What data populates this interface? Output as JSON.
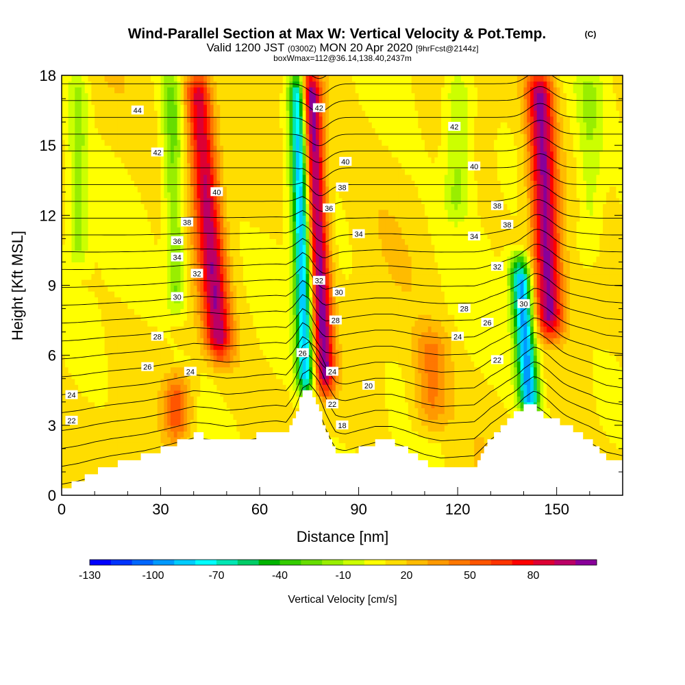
{
  "header": {
    "title": "Wind-Parallel Section at Max W: Vertical Velocity & Pot.Temp.",
    "copyright": "(C)",
    "valid_prefix": "Valid 1200 JST",
    "valid_utc": "(0300Z)",
    "valid_date": "MON 20 Apr 2020",
    "forecast_info": "[9hrFcst@2144z]",
    "box_info": "boxWmax=112@36.14,138.40,2437m"
  },
  "chart_data": {
    "type": "heatmap",
    "title": "Wind-Parallel Section at Max W: Vertical Velocity & Pot.Temp.",
    "xlabel": "Distance [nm]",
    "ylabel": "Height [Kft MSL]",
    "xlim": [
      0,
      170
    ],
    "ylim": [
      0,
      18
    ],
    "x_ticks": [
      0,
      30,
      60,
      90,
      120,
      150
    ],
    "y_ticks": [
      0,
      3,
      6,
      9,
      12,
      15,
      18
    ],
    "grid": false,
    "fill_variable": "Vertical Velocity [cm/s]",
    "colorbar": {
      "label": "Vertical Velocity [cm/s]",
      "placement": "bottom",
      "tick_labels": [
        "-130",
        "-100",
        "-70",
        "-40",
        "-10",
        "20",
        "50",
        "80"
      ],
      "tick_values": [
        -130,
        -100,
        -70,
        -40,
        -10,
        20,
        50,
        80
      ],
      "range": [
        -130,
        110
      ],
      "interval": 10,
      "colors": [
        "#0000ff",
        "#0033ff",
        "#0066ff",
        "#0099ff",
        "#00ccff",
        "#00ffff",
        "#00e6b3",
        "#00cc66",
        "#00b300",
        "#33cc00",
        "#66dd00",
        "#99ee00",
        "#ccff00",
        "#ffff00",
        "#ffdd00",
        "#ffbb00",
        "#ff9900",
        "#ff7700",
        "#ff5500",
        "#ff3300",
        "#ff0000",
        "#dd0033",
        "#bb0066",
        "#880099"
      ]
    },
    "terrain": [
      [
        0,
        0.3
      ],
      [
        5,
        0.6
      ],
      [
        10,
        1.0
      ],
      [
        15,
        1.3
      ],
      [
        20,
        1.5
      ],
      [
        25,
        1.7
      ],
      [
        30,
        2.0
      ],
      [
        35,
        2.3
      ],
      [
        40,
        2.6
      ],
      [
        45,
        2.5
      ],
      [
        50,
        2.3
      ],
      [
        55,
        2.4
      ],
      [
        60,
        2.6
      ],
      [
        65,
        2.7
      ],
      [
        68,
        2.6
      ],
      [
        70,
        3.2
      ],
      [
        73,
        4.5
      ],
      [
        75,
        4.5
      ],
      [
        78,
        3.5
      ],
      [
        80,
        2.6
      ],
      [
        83,
        1.7
      ],
      [
        86,
        1.7
      ],
      [
        90,
        2.0
      ],
      [
        95,
        2.3
      ],
      [
        100,
        2.3
      ],
      [
        104,
        2.0
      ],
      [
        110,
        1.4
      ],
      [
        115,
        1.1
      ],
      [
        120,
        1.2
      ],
      [
        125,
        1.3
      ],
      [
        130,
        2.5
      ],
      [
        135,
        3.3
      ],
      [
        140,
        3.8
      ],
      [
        143,
        3.8
      ],
      [
        146,
        3.4
      ],
      [
        150,
        3.2
      ],
      [
        155,
        2.8
      ],
      [
        160,
        2.3
      ],
      [
        165,
        1.6
      ],
      [
        170,
        1.3
      ]
    ],
    "updrafts": [
      {
        "x": 48,
        "y0": 6,
        "y1": 18,
        "tilt": -0.6,
        "width": 4,
        "w": 80
      },
      {
        "x": 80,
        "y0": 4.5,
        "y1": 18,
        "tilt": -0.35,
        "width": 3,
        "w": 95
      },
      {
        "x": 148,
        "y0": 7,
        "y1": 18,
        "tilt": -0.3,
        "width": 4,
        "w": 90
      },
      {
        "x": 35,
        "y0": 2.5,
        "y1": 5,
        "tilt": 0,
        "width": 4,
        "w": 45
      },
      {
        "x": 112,
        "y0": 3,
        "y1": 7,
        "tilt": 0,
        "width": 5,
        "w": 30
      }
    ],
    "downdrafts": [
      {
        "x": 74,
        "y0": 4.5,
        "y1": 18,
        "tilt": -0.2,
        "width": 2.5,
        "w": -100
      },
      {
        "x": 142,
        "y0": 3.5,
        "y1": 10,
        "tilt": -0.5,
        "width": 3,
        "w": -110
      },
      {
        "x": 35,
        "y0": 8,
        "y1": 18,
        "tilt": -0.2,
        "width": 3,
        "w": -35
      },
      {
        "x": 5,
        "y0": 10,
        "y1": 18,
        "tilt": 0,
        "width": 3,
        "w": -25
      },
      {
        "x": 160,
        "y0": 10,
        "y1": 18,
        "tilt": 0,
        "width": 4,
        "w": -20
      },
      {
        "x": 120,
        "y0": 12,
        "y1": 18,
        "tilt": 0,
        "width": 4,
        "w": -25
      }
    ],
    "theta_contours": {
      "variable": "Potential Temperature",
      "min": 18,
      "max": 44,
      "interval": 1,
      "label_interval": 2
    },
    "contour_labels": [
      {
        "text": "44",
        "x": 23,
        "y": 16.5
      },
      {
        "text": "42",
        "x": 29,
        "y": 14.7
      },
      {
        "text": "40",
        "x": 47,
        "y": 13.0
      },
      {
        "text": "38",
        "x": 38,
        "y": 11.7
      },
      {
        "text": "36",
        "x": 35,
        "y": 10.9
      },
      {
        "text": "34",
        "x": 35,
        "y": 10.2
      },
      {
        "text": "32",
        "x": 41,
        "y": 9.5
      },
      {
        "text": "30",
        "x": 35,
        "y": 8.5
      },
      {
        "text": "28",
        "x": 29,
        "y": 6.8
      },
      {
        "text": "26",
        "x": 26,
        "y": 5.5
      },
      {
        "text": "24",
        "x": 39,
        "y": 5.3
      },
      {
        "text": "24",
        "x": 3,
        "y": 4.3
      },
      {
        "text": "22",
        "x": 3,
        "y": 3.2
      },
      {
        "text": "42",
        "x": 78,
        "y": 16.6
      },
      {
        "text": "40",
        "x": 86,
        "y": 14.3
      },
      {
        "text": "38",
        "x": 85,
        "y": 13.2
      },
      {
        "text": "36",
        "x": 81,
        "y": 12.3
      },
      {
        "text": "34",
        "x": 90,
        "y": 11.2
      },
      {
        "text": "32",
        "x": 78,
        "y": 9.2
      },
      {
        "text": "30",
        "x": 84,
        "y": 8.7
      },
      {
        "text": "28",
        "x": 83,
        "y": 7.5
      },
      {
        "text": "26",
        "x": 73,
        "y": 6.1
      },
      {
        "text": "24",
        "x": 82,
        "y": 5.3
      },
      {
        "text": "22",
        "x": 82,
        "y": 3.9
      },
      {
        "text": "20",
        "x": 93,
        "y": 4.7
      },
      {
        "text": "18",
        "x": 85,
        "y": 3.0
      },
      {
        "text": "42",
        "x": 119,
        "y": 15.8
      },
      {
        "text": "40",
        "x": 125,
        "y": 14.1
      },
      {
        "text": "38",
        "x": 132,
        "y": 12.4
      },
      {
        "text": "38",
        "x": 135,
        "y": 11.6
      },
      {
        "text": "34",
        "x": 125,
        "y": 11.1
      },
      {
        "text": "32",
        "x": 132,
        "y": 9.8
      },
      {
        "text": "30",
        "x": 140,
        "y": 8.2
      },
      {
        "text": "28",
        "x": 122,
        "y": 8.0
      },
      {
        "text": "26",
        "x": 129,
        "y": 7.4
      },
      {
        "text": "24",
        "x": 120,
        "y": 6.8
      },
      {
        "text": "22",
        "x": 132,
        "y": 5.8
      }
    ]
  }
}
